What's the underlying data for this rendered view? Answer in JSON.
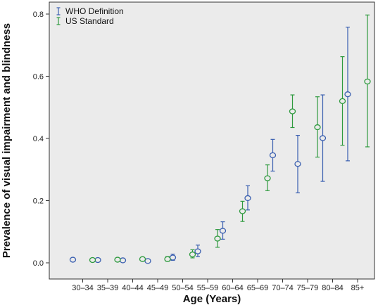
{
  "chart_data": {
    "type": "scatter",
    "title": "",
    "xlabel": "Age (Years)",
    "ylabel": "Prevalence of visual impairment and blindness",
    "ylim": [
      0,
      0.8
    ],
    "yticks": [
      "0.0",
      "0.2",
      "0.4",
      "0.6",
      "0.8"
    ],
    "grid": false,
    "legend_position": "top-left",
    "categories": [
      "30–34",
      "35–39",
      "40–44",
      "45–49",
      "50–54",
      "55–59",
      "60–64",
      "65–69",
      "70–74",
      "75–79",
      "80–84",
      "85+"
    ],
    "series": [
      {
        "name": "WHO Definition",
        "color": "#3a5fb0",
        "values": [
          0.01,
          0.009,
          0.008,
          0.006,
          0.017,
          0.037,
          0.103,
          0.208,
          0.346,
          0.318,
          0.401,
          0.542
        ],
        "lower": [
          0.005,
          0.004,
          0.004,
          0.002,
          0.008,
          0.02,
          0.076,
          0.17,
          0.295,
          0.225,
          0.262,
          0.328
        ],
        "upper": [
          0.014,
          0.014,
          0.012,
          0.01,
          0.028,
          0.057,
          0.132,
          0.248,
          0.397,
          0.41,
          0.54,
          0.758
        ]
      },
      {
        "name": "US Standard",
        "color": "#2e9a3e",
        "values": [
          0.009,
          0.01,
          0.012,
          0.012,
          0.027,
          0.078,
          0.166,
          0.272,
          0.487,
          0.436,
          0.52,
          0.583
        ],
        "lower": [
          0.004,
          0.005,
          0.006,
          0.005,
          0.016,
          0.05,
          0.133,
          0.232,
          0.435,
          0.34,
          0.378,
          0.373
        ],
        "upper": [
          0.014,
          0.016,
          0.018,
          0.02,
          0.042,
          0.107,
          0.198,
          0.315,
          0.54,
          0.534,
          0.663,
          0.797
        ]
      }
    ]
  }
}
